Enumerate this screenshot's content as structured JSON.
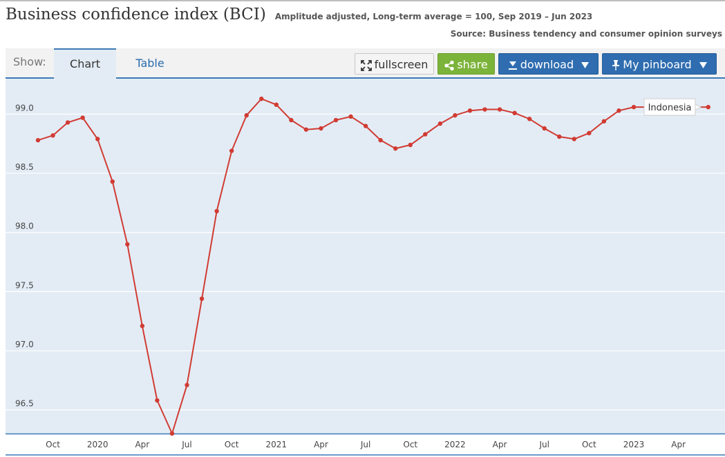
{
  "header": {
    "title": "Business confidence index (BCI)",
    "subtitle": "Amplitude adjusted, Long-term average = 100, Sep 2019 – Jun 2023",
    "source": "Source: Business tendency and consumer opinion surveys"
  },
  "toolbar": {
    "show_label": "Show:",
    "tabs": [
      {
        "label": "Chart",
        "active": true
      },
      {
        "label": "Table",
        "active": false
      }
    ],
    "fullscreen_label": "fullscreen",
    "share_label": "share",
    "download_label": "download",
    "pinboard_label": "My pinboard"
  },
  "icons": {
    "fullscreen": "expand-arrows-icon",
    "share": "share-icon",
    "download": "download-icon",
    "pinboard": "pin-icon",
    "dropdown": "caret-down-icon"
  },
  "colors": {
    "series": "#d13b33",
    "plot_background": "#e3ecf5",
    "share_button": "#7cb33a",
    "primary_button": "#2f6db0",
    "accent": "#3b79b5"
  },
  "chart_data": {
    "type": "line",
    "title": "Business confidence index (BCI)",
    "subtitle": "Amplitude adjusted, Long-term average = 100, Sep 2019 – Jun 2023",
    "ylim": [
      96.3,
      99.3
    ],
    "y_ticks": [
      "96.5",
      "97.0",
      "97.5",
      "98.0",
      "98.5",
      "99.0"
    ],
    "x_ticks": [
      "Oct",
      "2020",
      "Apr",
      "Jul",
      "Oct",
      "2021",
      "Apr",
      "Jul",
      "Oct",
      "2022",
      "Apr",
      "Jul",
      "Oct",
      "2023",
      "Apr"
    ],
    "x_tick_month_index": [
      1,
      4,
      7,
      10,
      13,
      16,
      19,
      22,
      25,
      28,
      31,
      34,
      37,
      40,
      43
    ],
    "grid": true,
    "legend": "inline label near last point",
    "series": [
      {
        "name": "Indonesia",
        "x_start": "2019-09",
        "x_end": "2023-06",
        "values": [
          98.78,
          98.82,
          98.93,
          98.97,
          98.79,
          98.43,
          97.9,
          97.21,
          96.58,
          96.3,
          96.71,
          97.44,
          98.18,
          98.69,
          98.99,
          99.13,
          99.08,
          98.95,
          98.87,
          98.88,
          98.95,
          98.98,
          98.9,
          98.78,
          98.71,
          98.74,
          98.83,
          98.92,
          98.99,
          99.03,
          99.04,
          99.04,
          99.01,
          98.96,
          98.88,
          98.81,
          98.79,
          98.84,
          98.94,
          99.03,
          99.06,
          99.06,
          99.06,
          99.06,
          99.06,
          99.06
        ]
      }
    ]
  }
}
